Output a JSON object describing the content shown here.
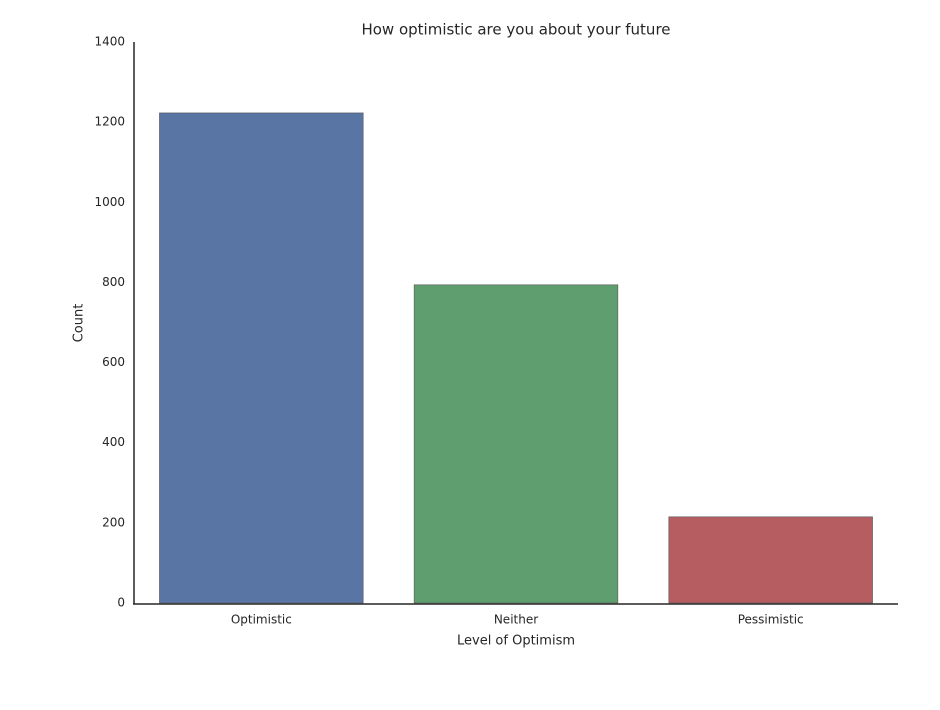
{
  "chart_data": {
    "type": "bar",
    "title": "How optimistic are you about your future",
    "x_label": "Level of Optimism",
    "y_label": "Count",
    "categories": [
      "Optimistic",
      "Neither",
      "Pessimistic"
    ],
    "values": [
      1223,
      794,
      215
    ],
    "colors": [
      "#5875a4",
      "#5f9e6e",
      "#b55d60"
    ],
    "ylim": [
      0,
      1400
    ],
    "yticks": [
      0,
      200,
      400,
      600,
      800,
      1000,
      1200,
      1400
    ],
    "grid": false
  }
}
